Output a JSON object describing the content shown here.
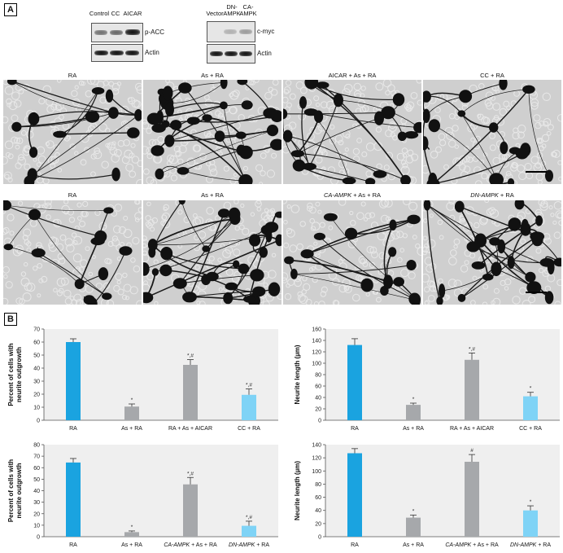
{
  "panel_a_label": "A",
  "panel_b_label": "B",
  "blot1": {
    "lanes": [
      "Control",
      "CC",
      "AICAR"
    ],
    "rows": [
      "p-ACC",
      "Actin"
    ]
  },
  "blot2": {
    "lanes": [
      "Vector",
      "DN-\nAMPK",
      "CA-\nAMPK"
    ],
    "rows": [
      "c-myc",
      "Actin"
    ]
  },
  "micrographs_row1": [
    "RA",
    "As + RA",
    "AICAR + As + RA",
    "CC + RA"
  ],
  "micrographs_row2": [
    {
      "italic": "",
      "text": "RA"
    },
    {
      "italic": "",
      "text": "As + RA"
    },
    {
      "italic": "CA-AMPK",
      "text": " + As + RA"
    },
    {
      "italic": "DN-AMPK",
      "text": " + RA"
    }
  ],
  "colors": {
    "dark_blue": "#1aa3e0",
    "gray": "#a6a8ab",
    "light_blue": "#7fd3f6",
    "plot_bg": "#efefef"
  },
  "chart_data": [
    {
      "type": "bar",
      "ylabel": "Percent of cells with\nneurite outgrowth",
      "categories": [
        {
          "italic": "",
          "text": "RA"
        },
        {
          "italic": "",
          "text": "As + RA"
        },
        {
          "italic": "",
          "text": "RA + As + AICAR"
        },
        {
          "italic": "",
          "text": "CC + RA"
        }
      ],
      "values": [
        60,
        10.5,
        42.5,
        19.5
      ],
      "errors": [
        2.5,
        2,
        4,
        4.5
      ],
      "marks": [
        "",
        "*",
        "*,#",
        "*,#"
      ],
      "bar_colors": [
        "dark_blue",
        "gray",
        "gray",
        "light_blue"
      ],
      "ylim": [
        0,
        70
      ],
      "yticks": [
        0,
        10,
        20,
        30,
        40,
        50,
        60,
        70
      ]
    },
    {
      "type": "bar",
      "ylabel": "Neurite length (µm)",
      "categories": [
        {
          "italic": "",
          "text": "RA"
        },
        {
          "italic": "",
          "text": "As + RA"
        },
        {
          "italic": "",
          "text": "RA + As + AICAR"
        },
        {
          "italic": "",
          "text": "CC + RA"
        }
      ],
      "values": [
        132,
        27,
        106,
        42
      ],
      "errors": [
        11,
        3,
        12,
        7
      ],
      "marks": [
        "",
        "*",
        "*,#",
        "*"
      ],
      "bar_colors": [
        "dark_blue",
        "gray",
        "gray",
        "light_blue"
      ],
      "ylim": [
        0,
        160
      ],
      "yticks": [
        0,
        20,
        40,
        60,
        80,
        100,
        120,
        140,
        160
      ]
    },
    {
      "type": "bar",
      "ylabel": "Percent of cells with\nneurite outgrowth",
      "categories": [
        {
          "italic": "",
          "text": "RA"
        },
        {
          "italic": "",
          "text": "As + RA"
        },
        {
          "italic": "CA-AMPK",
          "text": " + As + RA"
        },
        {
          "italic": "DN-AMPK",
          "text": " + RA"
        }
      ],
      "values": [
        64.5,
        4,
        45.5,
        9.5
      ],
      "errors": [
        3.5,
        1,
        6,
        4
      ],
      "marks": [
        "",
        "*",
        "*,#",
        "*,#"
      ],
      "bar_colors": [
        "dark_blue",
        "gray",
        "gray",
        "light_blue"
      ],
      "ylim": [
        0,
        80
      ],
      "yticks": [
        0,
        10,
        20,
        30,
        40,
        50,
        60,
        70,
        80
      ]
    },
    {
      "type": "bar",
      "ylabel": "Neurite length (µm)",
      "categories": [
        {
          "italic": "",
          "text": "RA"
        },
        {
          "italic": "",
          "text": "As + RA"
        },
        {
          "italic": "CA-AMPK",
          "text": " + As + RA"
        },
        {
          "italic": "DN-AMPK",
          "text": " + RA"
        }
      ],
      "values": [
        127,
        29,
        114,
        40
      ],
      "errors": [
        7,
        4,
        11,
        7
      ],
      "marks": [
        "",
        "*",
        "#",
        "*"
      ],
      "bar_colors": [
        "dark_blue",
        "gray",
        "gray",
        "light_blue"
      ],
      "ylim": [
        0,
        140
      ],
      "yticks": [
        0,
        20,
        40,
        60,
        80,
        100,
        120,
        140
      ]
    }
  ]
}
